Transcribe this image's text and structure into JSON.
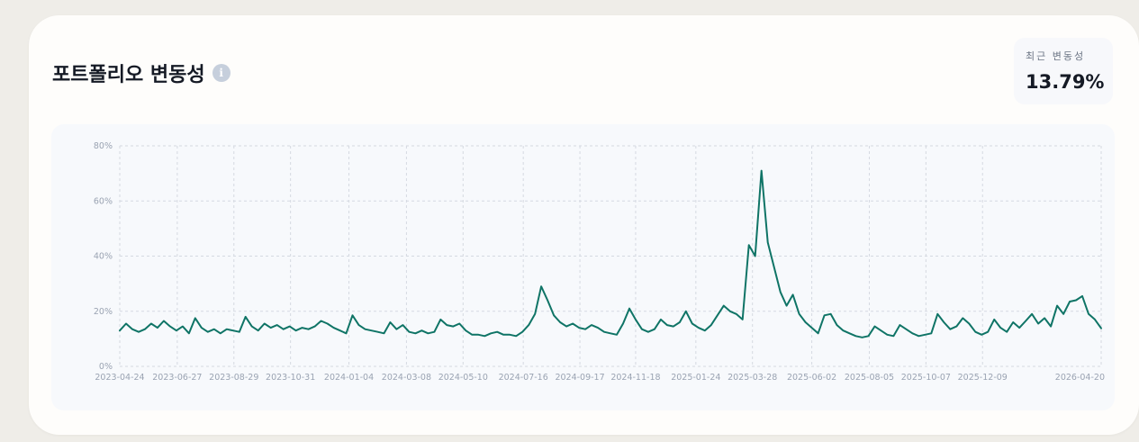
{
  "header": {
    "title": "포트폴리오 변동성",
    "info_icon": "info-icon"
  },
  "stat": {
    "label": "최근 변동성",
    "value": "13.79%"
  },
  "colors": {
    "line": "#0f7466",
    "grid": "#d5d9e1",
    "tick": "#9aa3b2"
  },
  "chart_data": {
    "type": "line",
    "title": "",
    "xlabel": "",
    "ylabel": "",
    "ylim": [
      0,
      80
    ],
    "y_ticks": [
      0,
      20,
      40,
      60,
      80
    ],
    "y_tick_labels": [
      "0%",
      "20%",
      "40%",
      "60%",
      "80%"
    ],
    "x_range": [
      "2023-04-24",
      "2026-04-20"
    ],
    "x_tick_labels": [
      "2023-04-24",
      "2023-06-27",
      "2023-08-29",
      "2023-10-31",
      "2024-01-04",
      "2024-03-08",
      "2024-05-10",
      "2024-07-16",
      "2024-09-17",
      "2024-11-18",
      "2025-01-24",
      "2025-03-28",
      "2025-06-02",
      "2025-08-05",
      "2025-10-07",
      "2025-12-09",
      "2026-04-20"
    ],
    "grid": true,
    "legend": "none",
    "series": [
      {
        "values_unit": "%",
        "points": [
          [
            "2023-04-24",
            13.0
          ],
          [
            "2023-05-01",
            15.5
          ],
          [
            "2023-05-08",
            13.5
          ],
          [
            "2023-05-15",
            12.5
          ],
          [
            "2023-05-22",
            13.5
          ],
          [
            "2023-05-29",
            15.5
          ],
          [
            "2023-06-05",
            14.0
          ],
          [
            "2023-06-12",
            16.5
          ],
          [
            "2023-06-19",
            14.5
          ],
          [
            "2023-06-26",
            13.0
          ],
          [
            "2023-07-03",
            14.5
          ],
          [
            "2023-07-10",
            12.0
          ],
          [
            "2023-07-17",
            17.5
          ],
          [
            "2023-07-24",
            14.0
          ],
          [
            "2023-07-31",
            12.5
          ],
          [
            "2023-08-07",
            13.5
          ],
          [
            "2023-08-14",
            12.0
          ],
          [
            "2023-08-21",
            13.5
          ],
          [
            "2023-08-28",
            13.0
          ],
          [
            "2023-09-04",
            12.5
          ],
          [
            "2023-09-11",
            18.0
          ],
          [
            "2023-09-18",
            14.5
          ],
          [
            "2023-09-25",
            13.0
          ],
          [
            "2023-10-02",
            15.5
          ],
          [
            "2023-10-09",
            14.0
          ],
          [
            "2023-10-16",
            15.0
          ],
          [
            "2023-10-23",
            13.5
          ],
          [
            "2023-10-30",
            14.5
          ],
          [
            "2023-11-06",
            13.0
          ],
          [
            "2023-11-13",
            14.0
          ],
          [
            "2023-11-20",
            13.5
          ],
          [
            "2023-11-27",
            14.5
          ],
          [
            "2023-12-04",
            16.5
          ],
          [
            "2023-12-11",
            15.5
          ],
          [
            "2023-12-18",
            14.0
          ],
          [
            "2023-12-25",
            13.0
          ],
          [
            "2024-01-01",
            12.0
          ],
          [
            "2024-01-08",
            18.5
          ],
          [
            "2024-01-15",
            15.0
          ],
          [
            "2024-01-22",
            13.5
          ],
          [
            "2024-01-29",
            13.0
          ],
          [
            "2024-02-05",
            12.5
          ],
          [
            "2024-02-12",
            12.0
          ],
          [
            "2024-02-19",
            16.0
          ],
          [
            "2024-02-26",
            13.5
          ],
          [
            "2024-03-04",
            15.0
          ],
          [
            "2024-03-11",
            12.5
          ],
          [
            "2024-03-18",
            12.0
          ],
          [
            "2024-03-25",
            13.0
          ],
          [
            "2024-04-01",
            12.0
          ],
          [
            "2024-04-08",
            12.5
          ],
          [
            "2024-04-15",
            17.0
          ],
          [
            "2024-04-22",
            15.0
          ],
          [
            "2024-04-29",
            14.5
          ],
          [
            "2024-05-06",
            15.5
          ],
          [
            "2024-05-13",
            13.0
          ],
          [
            "2024-05-20",
            11.5
          ],
          [
            "2024-05-27",
            11.5
          ],
          [
            "2024-06-03",
            11.0
          ],
          [
            "2024-06-10",
            12.0
          ],
          [
            "2024-06-17",
            12.5
          ],
          [
            "2024-06-24",
            11.5
          ],
          [
            "2024-07-01",
            11.5
          ],
          [
            "2024-07-08",
            11.0
          ],
          [
            "2024-07-15",
            12.5
          ],
          [
            "2024-07-22",
            15.0
          ],
          [
            "2024-07-29",
            19.0
          ],
          [
            "2024-08-05",
            29.0
          ],
          [
            "2024-08-12",
            24.0
          ],
          [
            "2024-08-19",
            18.5
          ],
          [
            "2024-08-26",
            16.0
          ],
          [
            "2024-09-02",
            14.5
          ],
          [
            "2024-09-09",
            15.5
          ],
          [
            "2024-09-16",
            14.0
          ],
          [
            "2024-09-23",
            13.5
          ],
          [
            "2024-09-30",
            15.0
          ],
          [
            "2024-10-07",
            14.0
          ],
          [
            "2024-10-14",
            12.5
          ],
          [
            "2024-10-21",
            12.0
          ],
          [
            "2024-10-28",
            11.5
          ],
          [
            "2024-11-04",
            15.5
          ],
          [
            "2024-11-11",
            21.0
          ],
          [
            "2024-11-18",
            17.0
          ],
          [
            "2024-11-25",
            13.5
          ],
          [
            "2024-12-02",
            12.5
          ],
          [
            "2024-12-09",
            13.5
          ],
          [
            "2024-12-16",
            17.0
          ],
          [
            "2024-12-23",
            15.0
          ],
          [
            "2024-12-30",
            14.5
          ],
          [
            "2025-01-06",
            16.0
          ],
          [
            "2025-01-13",
            20.0
          ],
          [
            "2025-01-20",
            15.5
          ],
          [
            "2025-01-27",
            14.0
          ],
          [
            "2025-02-03",
            13.0
          ],
          [
            "2025-02-10",
            15.0
          ],
          [
            "2025-02-17",
            18.5
          ],
          [
            "2025-02-24",
            22.0
          ],
          [
            "2025-03-03",
            20.0
          ],
          [
            "2025-03-10",
            19.0
          ],
          [
            "2025-03-17",
            17.0
          ],
          [
            "2025-03-24",
            44.0
          ],
          [
            "2025-03-31",
            40.0
          ],
          [
            "2025-04-07",
            71.0
          ],
          [
            "2025-04-14",
            45.0
          ],
          [
            "2025-04-21",
            36.0
          ],
          [
            "2025-04-28",
            27.0
          ],
          [
            "2025-05-05",
            22.0
          ],
          [
            "2025-05-12",
            26.0
          ],
          [
            "2025-05-19",
            19.0
          ],
          [
            "2025-05-26",
            16.0
          ],
          [
            "2025-06-02",
            14.0
          ],
          [
            "2025-06-09",
            12.0
          ],
          [
            "2025-06-16",
            18.5
          ],
          [
            "2025-06-23",
            19.0
          ],
          [
            "2025-06-30",
            15.0
          ],
          [
            "2025-07-07",
            13.0
          ],
          [
            "2025-07-14",
            12.0
          ],
          [
            "2025-07-21",
            11.0
          ],
          [
            "2025-07-28",
            10.5
          ],
          [
            "2025-08-04",
            11.0
          ],
          [
            "2025-08-11",
            14.5
          ],
          [
            "2025-08-18",
            13.0
          ],
          [
            "2025-08-25",
            11.5
          ],
          [
            "2025-09-01",
            11.0
          ],
          [
            "2025-09-08",
            15.0
          ],
          [
            "2025-09-15",
            13.5
          ],
          [
            "2025-09-22",
            12.0
          ],
          [
            "2025-09-29",
            11.0
          ],
          [
            "2025-10-06",
            11.5
          ],
          [
            "2025-10-13",
            12.0
          ],
          [
            "2025-10-20",
            19.0
          ],
          [
            "2025-10-27",
            16.0
          ],
          [
            "2025-11-03",
            13.5
          ],
          [
            "2025-11-10",
            14.5
          ],
          [
            "2025-11-17",
            17.5
          ],
          [
            "2025-11-24",
            15.5
          ],
          [
            "2025-12-01",
            12.5
          ],
          [
            "2025-12-08",
            11.5
          ],
          [
            "2025-12-15",
            12.5
          ],
          [
            "2025-12-22",
            17.0
          ],
          [
            "2025-12-29",
            14.0
          ],
          [
            "2026-01-05",
            12.5
          ],
          [
            "2026-01-12",
            16.0
          ],
          [
            "2026-01-19",
            14.0
          ],
          [
            "2026-01-26",
            16.5
          ],
          [
            "2026-02-02",
            19.0
          ],
          [
            "2026-02-09",
            15.5
          ],
          [
            "2026-02-16",
            17.5
          ],
          [
            "2026-02-23",
            14.5
          ],
          [
            "2026-03-02",
            22.0
          ],
          [
            "2026-03-09",
            19.0
          ],
          [
            "2026-03-16",
            23.5
          ],
          [
            "2026-03-23",
            24.0
          ],
          [
            "2026-03-30",
            25.5
          ],
          [
            "2026-04-06",
            19.0
          ],
          [
            "2026-04-13",
            17.0
          ],
          [
            "2026-04-20",
            13.8
          ]
        ]
      }
    ]
  }
}
